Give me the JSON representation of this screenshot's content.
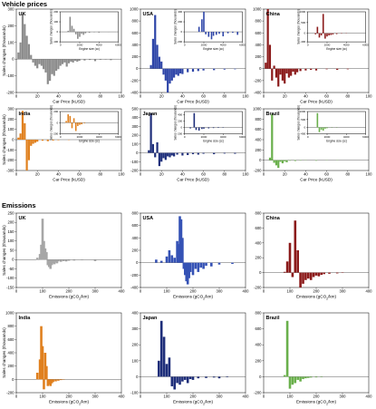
{
  "sections": [
    {
      "title": "Vehicle prices"
    },
    {
      "title": "Emissions"
    }
  ],
  "chart_data": [
    {
      "type": "bar",
      "panel": "UK",
      "section": "Vehicle prices",
      "color": "#8c8c8c",
      "xlabel": "Car Price (kUSD)",
      "ylabel": "Sales changes (thousands)",
      "xlim": [
        0,
        100
      ],
      "ylim": [
        -200,
        300
      ],
      "xticks": [
        0,
        20,
        40,
        60,
        80,
        100
      ],
      "yticks": [
        -200,
        -100,
        0,
        100,
        200,
        300
      ],
      "x": [
        2,
        4,
        6,
        8,
        10,
        12,
        14,
        16,
        18,
        20,
        22,
        24,
        26,
        28,
        30,
        32,
        34,
        36,
        38,
        40,
        42,
        44,
        46,
        48,
        50,
        52,
        54,
        56,
        58,
        60,
        65,
        70,
        75,
        80,
        85,
        90
      ],
      "values": [
        40,
        100,
        270,
        210,
        140,
        90,
        25,
        -20,
        -40,
        -55,
        -30,
        -40,
        -60,
        -80,
        -150,
        -130,
        -90,
        -100,
        -70,
        -60,
        -40,
        -30,
        -20,
        -45,
        -25,
        -15,
        -20,
        -10,
        -15,
        -10,
        -8,
        -5,
        -12,
        -4,
        -3,
        -6
      ],
      "inset": {
        "xlabel": "Engine size (cc)",
        "ylabel": "Sales changes (thousands)",
        "xlim": [
          0,
          6000
        ],
        "ylim": [
          -100,
          200
        ],
        "xticks": [
          0,
          2000,
          4000,
          6000
        ],
        "yticks": [
          -100,
          0,
          100,
          200
        ],
        "x": [
          800,
          1000,
          1200,
          1400,
          1600,
          1800,
          2000,
          2200,
          2400,
          2600,
          3000,
          3500,
          4000,
          5000
        ],
        "values": [
          10,
          150,
          60,
          30,
          -25,
          -70,
          -50,
          -20,
          -30,
          -15,
          -10,
          -5,
          -8,
          -3
        ]
      }
    },
    {
      "type": "bar",
      "panel": "USA",
      "section": "Vehicle prices",
      "color": "#2e45a8",
      "xlabel": "Car Price (kUSD)",
      "ylabel": "",
      "xlim": [
        0,
        100
      ],
      "ylim": [
        -400,
        1000
      ],
      "xticks": [
        0,
        20,
        40,
        60,
        80,
        100
      ],
      "yticks": [
        -400,
        -200,
        0,
        200,
        400,
        600,
        800,
        1000
      ],
      "x": [
        10,
        12,
        14,
        16,
        18,
        20,
        22,
        24,
        26,
        28,
        30,
        32,
        34,
        36,
        38,
        40,
        45,
        50,
        55,
        60,
        70,
        80,
        90
      ],
      "values": [
        60,
        500,
        900,
        400,
        200,
        120,
        -100,
        -200,
        -400,
        -250,
        -200,
        -150,
        -100,
        -120,
        -80,
        -90,
        -60,
        -50,
        -40,
        -30,
        -25,
        -15,
        -10
      ],
      "inset": {
        "xlabel": "Engine size (cc)",
        "ylabel": "Sales changes (thousands)",
        "xlim": [
          0,
          6000
        ],
        "ylim": [
          -200,
          400
        ],
        "xticks": [
          0,
          2000,
          4000,
          6000
        ],
        "yticks": [
          -200,
          0,
          200,
          400
        ],
        "x": [
          1500,
          1800,
          2000,
          2200,
          2500,
          2800,
          3000,
          3300,
          3600,
          4000,
          4500,
          5000,
          5500
        ],
        "values": [
          100,
          250,
          400,
          -50,
          -100,
          -150,
          -80,
          -60,
          -40,
          -90,
          -30,
          -20,
          -60
        ]
      }
    },
    {
      "type": "bar",
      "panel": "China",
      "section": "Vehicle prices",
      "color": "#8b1a1a",
      "xlabel": "Car Price (kUSD)",
      "ylabel": "",
      "xlim": [
        0,
        100
      ],
      "ylim": [
        -400,
        1000
      ],
      "xticks": [
        0,
        20,
        40,
        60,
        80,
        100
      ],
      "yticks": [
        -400,
        -200,
        0,
        200,
        400,
        600,
        800,
        1000
      ],
      "x": [
        2,
        4,
        6,
        8,
        10,
        12,
        14,
        16,
        18,
        20,
        22,
        24,
        26,
        28,
        30,
        32,
        35,
        40,
        45,
        50,
        60,
        70,
        80
      ],
      "values": [
        100,
        1000,
        400,
        -200,
        50,
        -150,
        -300,
        -100,
        -200,
        -250,
        -80,
        -150,
        -120,
        -50,
        -100,
        -60,
        -40,
        -30,
        -20,
        -30,
        -10,
        -20,
        -10
      ],
      "inset": {
        "xlabel": "Engine size (cc)",
        "ylabel": "Sales changes (thousands)",
        "xlim": [
          0,
          6000
        ],
        "ylim": [
          -400,
          1000
        ],
        "xticks": [
          0,
          2000,
          4000,
          6000
        ],
        "yticks": [
          -400,
          0,
          500,
          1000
        ],
        "x": [
          800,
          1000,
          1200,
          1400,
          1600,
          1800,
          2000,
          2200,
          2400,
          2600,
          3000,
          3500,
          4000
        ],
        "values": [
          -50,
          300,
          -200,
          -100,
          900,
          -250,
          -150,
          -100,
          -80,
          -60,
          -40,
          -20,
          -10
        ]
      }
    },
    {
      "type": "bar",
      "panel": "India",
      "section": "Vehicle prices",
      "color": "#e0801e",
      "xlabel": "Car Price (kUSD)",
      "ylabel": "Sales changes (thousands)",
      "xlim": [
        0,
        100
      ],
      "ylim": [
        -300,
        300
      ],
      "xticks": [
        0,
        20,
        40,
        60,
        80,
        100
      ],
      "yticks": [
        -300,
        -200,
        -100,
        0,
        100,
        200,
        300
      ],
      "x": [
        2,
        4,
        6,
        8,
        10,
        12,
        14,
        16,
        18,
        20,
        25,
        30,
        35,
        40,
        50
      ],
      "values": [
        20,
        60,
        280,
        160,
        -300,
        -200,
        -60,
        -40,
        -30,
        -20,
        -10,
        -15,
        -8,
        -5,
        -3
      ],
      "inset": {
        "xlabel": "Engine size (cc)",
        "ylabel": "Sales changes (thousands)",
        "xlim": [
          0,
          6000
        ],
        "ylim": [
          -200,
          200
        ],
        "xticks": [
          0,
          2000,
          4000,
          6000
        ],
        "yticks": [
          -200,
          0,
          200
        ],
        "x": [
          600,
          800,
          1000,
          1200,
          1400,
          1600,
          1800,
          2000,
          2200,
          2500
        ],
        "values": [
          30,
          150,
          120,
          -100,
          80,
          -150,
          -60,
          -40,
          -30,
          -10
        ]
      }
    },
    {
      "type": "bar",
      "panel": "Japan",
      "section": "Vehicle prices",
      "color": "#1e2e7a",
      "xlabel": "Car Price (kUSD)",
      "ylabel": "",
      "xlim": [
        0,
        100
      ],
      "ylim": [
        -200,
        500
      ],
      "xticks": [
        0,
        20,
        40,
        60,
        80,
        100
      ],
      "yticks": [
        -200,
        -100,
        0,
        100,
        200,
        300,
        400,
        500
      ],
      "x": [
        8,
        10,
        12,
        14,
        16,
        18,
        20,
        22,
        24,
        26,
        28,
        30,
        32,
        35,
        40,
        45,
        50,
        55,
        60,
        70,
        80,
        90
      ],
      "values": [
        30,
        450,
        100,
        -50,
        120,
        -150,
        -100,
        -60,
        -80,
        -40,
        -50,
        -30,
        -40,
        -20,
        -30,
        -25,
        -15,
        -20,
        -10,
        -15,
        -8,
        -10
      ],
      "inset": {
        "xlabel": "Engine size (cc)",
        "ylabel": "Sales changes (thousands)",
        "xlim": [
          0,
          6000
        ],
        "ylim": [
          -200,
          500
        ],
        "xticks": [
          0,
          2000,
          4000,
          6000
        ],
        "yticks": [
          -200,
          0,
          200,
          400
        ],
        "x": [
          600,
          1000,
          1200,
          1500,
          1800,
          2000,
          2500,
          3000,
          3500,
          4000
        ],
        "values": [
          -30,
          450,
          -80,
          -100,
          -50,
          -40,
          -30,
          -20,
          -15,
          -10
        ]
      }
    },
    {
      "type": "bar",
      "panel": "Brazil",
      "section": "Vehicle prices",
      "color": "#6ab04c",
      "xlabel": "Car Price (kUSD)",
      "ylabel": "",
      "xlim": [
        0,
        100
      ],
      "ylim": [
        -200,
        1000
      ],
      "xticks": [
        0,
        20,
        40,
        60,
        80,
        100
      ],
      "yticks": [
        -200,
        0,
        200,
        400,
        600,
        800,
        1000
      ],
      "x": [
        6,
        8,
        10,
        12,
        14,
        16,
        18,
        20,
        22,
        25,
        30,
        35,
        40,
        50,
        60,
        70
      ],
      "values": [
        50,
        900,
        -50,
        -100,
        -150,
        -30,
        -60,
        -20,
        -40,
        -10,
        -15,
        -8,
        -5,
        -10,
        -4,
        -3
      ],
      "inset": {
        "xlabel": "Engine size (cc)",
        "ylabel": "Sales changes (thousands)",
        "xlim": [
          0,
          6000
        ],
        "ylim": [
          -400,
          1000
        ],
        "xticks": [
          0,
          2000,
          4000,
          6000
        ],
        "yticks": [
          -400,
          0,
          500,
          1000
        ],
        "x": [
          1000,
          1200,
          1400,
          1600,
          1800,
          2000,
          2500,
          3000
        ],
        "values": [
          900,
          -300,
          -150,
          -200,
          -80,
          -50,
          -20,
          -10
        ]
      }
    },
    {
      "type": "bar",
      "panel": "UK",
      "section": "Emissions",
      "color": "#a6a6a6",
      "xlabel": "Emissions (gCO2/km)",
      "ylabel": "Sales changes (thousands)",
      "xlim": [
        0,
        400
      ],
      "ylim": [
        -150,
        250
      ],
      "xticks": [
        0,
        100,
        200,
        300,
        400
      ],
      "yticks": [
        -150,
        -100,
        -50,
        0,
        50,
        100,
        150,
        200,
        250
      ],
      "x": [
        80,
        90,
        95,
        100,
        105,
        110,
        115,
        120,
        125,
        130,
        135,
        140,
        145,
        150,
        155,
        160,
        170,
        180,
        190,
        200,
        220,
        250,
        300
      ],
      "values": [
        10,
        30,
        80,
        220,
        100,
        60,
        40,
        -30,
        -40,
        -50,
        -30,
        -20,
        -25,
        -15,
        -20,
        -10,
        -12,
        -8,
        -10,
        -6,
        -5,
        -3,
        -8
      ]
    },
    {
      "type": "bar",
      "panel": "USA",
      "section": "Emissions",
      "color": "#3552b5",
      "xlabel": "Emissions (gCO2/km)",
      "ylabel": "",
      "xlim": [
        0,
        400
      ],
      "ylim": [
        -400,
        800
      ],
      "xticks": [
        0,
        100,
        200,
        300,
        400
      ],
      "yticks": [
        -400,
        -200,
        0,
        200,
        400,
        600,
        800
      ],
      "x": [
        60,
        80,
        100,
        110,
        120,
        130,
        140,
        145,
        150,
        155,
        160,
        165,
        170,
        175,
        180,
        185,
        190,
        200,
        210,
        220,
        230,
        240,
        250,
        270,
        300,
        350
      ],
      "values": [
        50,
        30,
        100,
        200,
        120,
        80,
        350,
        300,
        750,
        700,
        400,
        -100,
        -200,
        -300,
        -350,
        -250,
        -150,
        -200,
        -100,
        -150,
        -80,
        -100,
        -50,
        -60,
        -30,
        -20
      ]
    },
    {
      "type": "bar",
      "panel": "China",
      "section": "Emissions",
      "color": "#8b1a1a",
      "xlabel": "Emissions (gCO2/km)",
      "ylabel": "",
      "xlim": [
        0,
        400
      ],
      "ylim": [
        -200,
        800
      ],
      "xticks": [
        0,
        100,
        200,
        300,
        400
      ],
      "yticks": [
        -200,
        0,
        200,
        400,
        600,
        800
      ],
      "x": [
        80,
        90,
        100,
        110,
        120,
        130,
        140,
        150,
        160,
        170,
        180,
        190,
        200,
        210,
        220,
        230,
        250,
        280,
        300
      ],
      "values": [
        10,
        150,
        400,
        -60,
        700,
        300,
        -200,
        -150,
        -100,
        -80,
        -100,
        -60,
        -40,
        -50,
        -30,
        -20,
        -15,
        -10,
        -5
      ]
    },
    {
      "type": "bar",
      "panel": "India",
      "section": "Emissions",
      "color": "#e0801e",
      "xlabel": "Emissions (gCO2/km)",
      "ylabel": "Sales changes (thousands)",
      "xlim": [
        0,
        400
      ],
      "ylim": [
        -200,
        1000
      ],
      "xticks": [
        0,
        100,
        200,
        300,
        400
      ],
      "yticks": [
        -200,
        0,
        200,
        400,
        600,
        800,
        1000
      ],
      "x": [
        80,
        90,
        95,
        100,
        105,
        110,
        115,
        120,
        125,
        130,
        135,
        140,
        150,
        160,
        170,
        180
      ],
      "values": [
        100,
        300,
        800,
        500,
        -150,
        400,
        200,
        -100,
        -80,
        -100,
        -60,
        -40,
        -30,
        -20,
        -10,
        -5
      ]
    },
    {
      "type": "bar",
      "panel": "Japan",
      "section": "Emissions",
      "color": "#1e2e7a",
      "xlabel": "Emissions (gCO2/km)",
      "ylabel": "",
      "xlim": [
        0,
        400
      ],
      "ylim": [
        -100,
        400
      ],
      "xticks": [
        0,
        100,
        200,
        300,
        400
      ],
      "yticks": [
        -100,
        0,
        100,
        200,
        300,
        400
      ],
      "x": [
        70,
        80,
        90,
        100,
        110,
        120,
        130,
        140,
        150,
        160,
        170,
        180,
        190,
        200,
        220,
        250,
        280,
        300,
        330
      ],
      "values": [
        100,
        350,
        250,
        80,
        120,
        -60,
        -80,
        -40,
        -50,
        -30,
        -20,
        -40,
        -15,
        -20,
        -10,
        -8,
        -5,
        -10,
        -3
      ]
    },
    {
      "type": "bar",
      "panel": "Brazil",
      "section": "Emissions",
      "color": "#6ab04c",
      "xlabel": "Emissions (gCO2/km)",
      "ylabel": "",
      "xlim": [
        0,
        400
      ],
      "ylim": [
        -200,
        800
      ],
      "xticks": [
        0,
        100,
        200,
        300,
        400
      ],
      "yticks": [
        -200,
        0,
        200,
        400,
        600,
        800
      ],
      "x": [
        80,
        90,
        100,
        110,
        120,
        130,
        140,
        150,
        160,
        170,
        180,
        200,
        220
      ],
      "values": [
        20,
        700,
        -150,
        -100,
        -80,
        -40,
        -60,
        -30,
        -20,
        -15,
        -10,
        -8,
        -5
      ]
    }
  ]
}
